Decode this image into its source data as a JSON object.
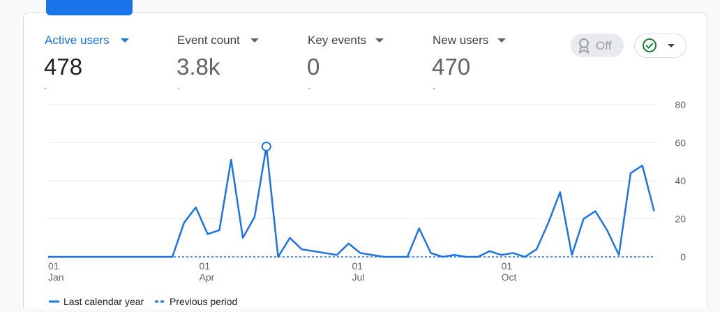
{
  "tabs": [
    {
      "label": "Active users",
      "value": "478",
      "change": "-"
    },
    {
      "label": "Event count",
      "value": "3.8k",
      "change": "-"
    },
    {
      "label": "Key events",
      "value": "0",
      "change": "-"
    },
    {
      "label": "New users",
      "value": "470",
      "change": "-"
    }
  ],
  "toggle": {
    "label": "Off"
  },
  "chart_data": {
    "type": "line",
    "x": [
      0,
      4,
      11,
      18,
      25,
      32,
      39,
      46,
      53,
      60,
      67,
      74,
      81,
      88,
      95,
      102,
      109,
      116,
      123,
      130,
      137,
      144,
      151,
      158,
      165,
      172,
      179,
      186,
      193,
      200,
      207,
      214,
      221,
      228,
      235,
      242,
      249,
      256,
      263,
      270,
      277,
      284,
      291,
      298,
      305,
      312,
      319,
      326,
      333,
      340,
      347,
      354,
      361
    ],
    "xlim": [
      0,
      362
    ],
    "xticks": [
      {
        "value": 0,
        "label": "01",
        "month": "Jan"
      },
      {
        "value": 90,
        "label": "01",
        "month": "Apr"
      },
      {
        "value": 181,
        "label": "01",
        "month": "Jul"
      },
      {
        "value": 270,
        "label": "01",
        "month": "Oct"
      }
    ],
    "ylim": [
      0,
      80
    ],
    "yticks": [
      0,
      20,
      40,
      60,
      80
    ],
    "grid": true,
    "highlight_index": 19,
    "series": [
      {
        "name": "Last calendar year",
        "color": "#1a73e8",
        "dashed": false,
        "values": [
          0,
          0,
          0,
          0,
          0,
          0,
          0,
          0,
          0,
          0,
          0,
          0,
          18,
          26,
          12,
          14,
          51,
          10,
          21,
          58,
          0,
          10,
          4,
          3,
          2,
          1,
          7,
          2,
          1,
          0,
          0,
          0,
          15,
          2,
          0,
          1,
          0,
          0,
          3,
          1,
          2,
          0,
          4,
          18,
          34,
          1,
          20,
          24,
          14,
          1,
          44,
          48,
          24
        ]
      },
      {
        "name": "Previous period",
        "color": "#1a73e8",
        "dashed": true,
        "values": [
          0,
          0,
          0,
          0,
          0,
          0,
          0,
          0,
          0,
          0,
          0,
          0,
          0,
          0,
          0,
          0,
          0,
          0,
          0,
          0,
          0,
          0,
          0,
          0,
          0,
          0,
          0,
          0,
          0,
          0,
          0,
          0,
          0,
          0,
          0,
          0,
          0,
          0,
          0,
          0,
          0,
          0,
          0,
          0,
          0,
          0,
          0,
          0,
          0,
          0,
          0,
          0,
          0
        ]
      }
    ]
  }
}
